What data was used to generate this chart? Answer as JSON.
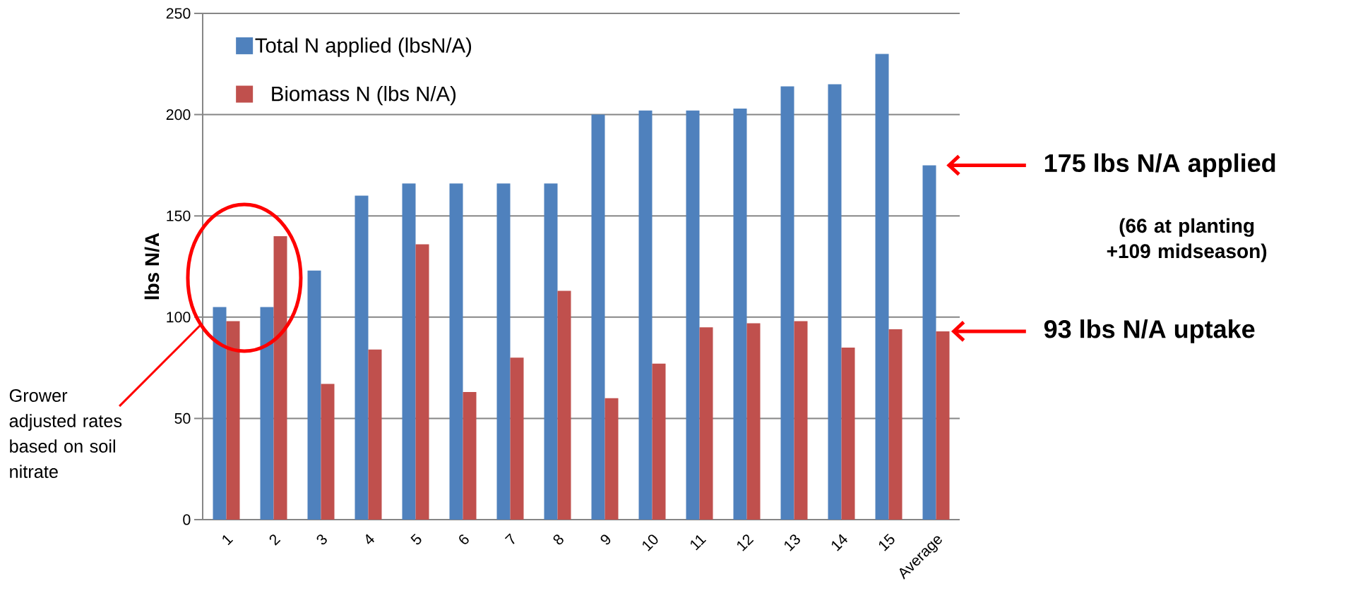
{
  "chart_data": {
    "type": "bar",
    "ylabel": "lbs N/A",
    "categories": [
      "1",
      "2",
      "3",
      "4",
      "5",
      "6",
      "7",
      "8",
      "9",
      "10",
      "11",
      "12",
      "13",
      "14",
      "15",
      "Average"
    ],
    "series": [
      {
        "name": "Total N applied (lbsN/A)",
        "color": "#4f81bd",
        "values": [
          105,
          105,
          123,
          160,
          166,
          166,
          166,
          166,
          200,
          202,
          202,
          203,
          214,
          215,
          230,
          175
        ]
      },
      {
        "name": "Biomass N (lbs N/A)",
        "color": "#c0504d",
        "values": [
          98,
          140,
          67,
          84,
          136,
          63,
          80,
          113,
          60,
          77,
          95,
          97,
          98,
          85,
          94,
          93
        ]
      }
    ],
    "ylim": [
      0,
      250
    ],
    "yticks": [
      0,
      50,
      100,
      150,
      200,
      250
    ],
    "grid": "y",
    "legend": "top left",
    "annotations": [
      "175 lbs N/A applied",
      "(66 at planting +109 midseason)",
      "93 lbs N/A uptake",
      "Grower adjusted rates based on soil nitrate"
    ]
  }
}
